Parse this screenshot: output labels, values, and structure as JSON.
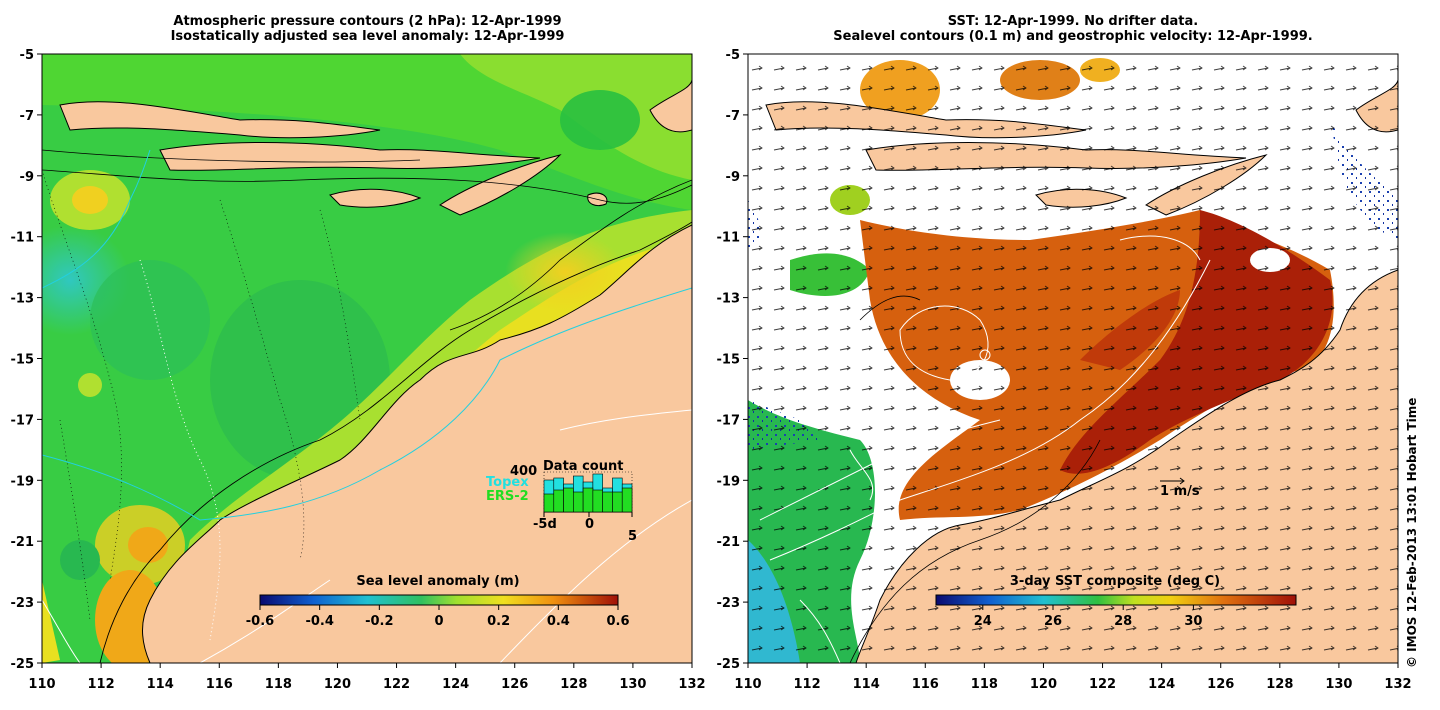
{
  "left_panel": {
    "title_line1": "Atmospheric pressure contours (2 hPa): 12-Apr-1999",
    "title_line2": "Isostatically adjusted sea level anomaly: 12-Apr-1999",
    "colorbar_title": "Sea level anomaly (m)",
    "colorbar_ticks": [
      "-0.6",
      "-0.4",
      "-0.2",
      "0",
      "0.2",
      "0.4",
      "0.6"
    ],
    "inset": {
      "count_label": "400",
      "title": "Data count",
      "topex_label": "Topex",
      "ers_label": "ERS-2",
      "x_ticks": [
        "-5d",
        "0",
        "5"
      ],
      "topex_color": "#22e0e0",
      "ers_color": "#22dd22"
    }
  },
  "right_panel": {
    "title_line1": "SST: 12-Apr-1999. No drifter data.",
    "title_line2": "Sealevel contours (0.1 m) and geostrophic velocity: 12-Apr-1999.",
    "colorbar_title": "3-day SST composite (deg C)",
    "colorbar_ticks": [
      "24",
      "26",
      "28",
      "30"
    ],
    "scale_label": "1 m/s"
  },
  "axes": {
    "y_ticks": [
      "-5",
      "-7",
      "-9",
      "-11",
      "-13",
      "-15",
      "-17",
      "-19",
      "-21",
      "-23",
      "-25"
    ],
    "x_ticks": [
      "110",
      "112",
      "114",
      "116",
      "118",
      "120",
      "122",
      "124",
      "126",
      "128",
      "130",
      "132"
    ]
  },
  "credit": "© IMOS 12-Feb-2013 13:01 Hobart Time",
  "colors": {
    "land": "#f9c89e",
    "sla_background": "#3cd040",
    "sst_warm": "#c25010",
    "sst_hot": "#a81a08"
  }
}
